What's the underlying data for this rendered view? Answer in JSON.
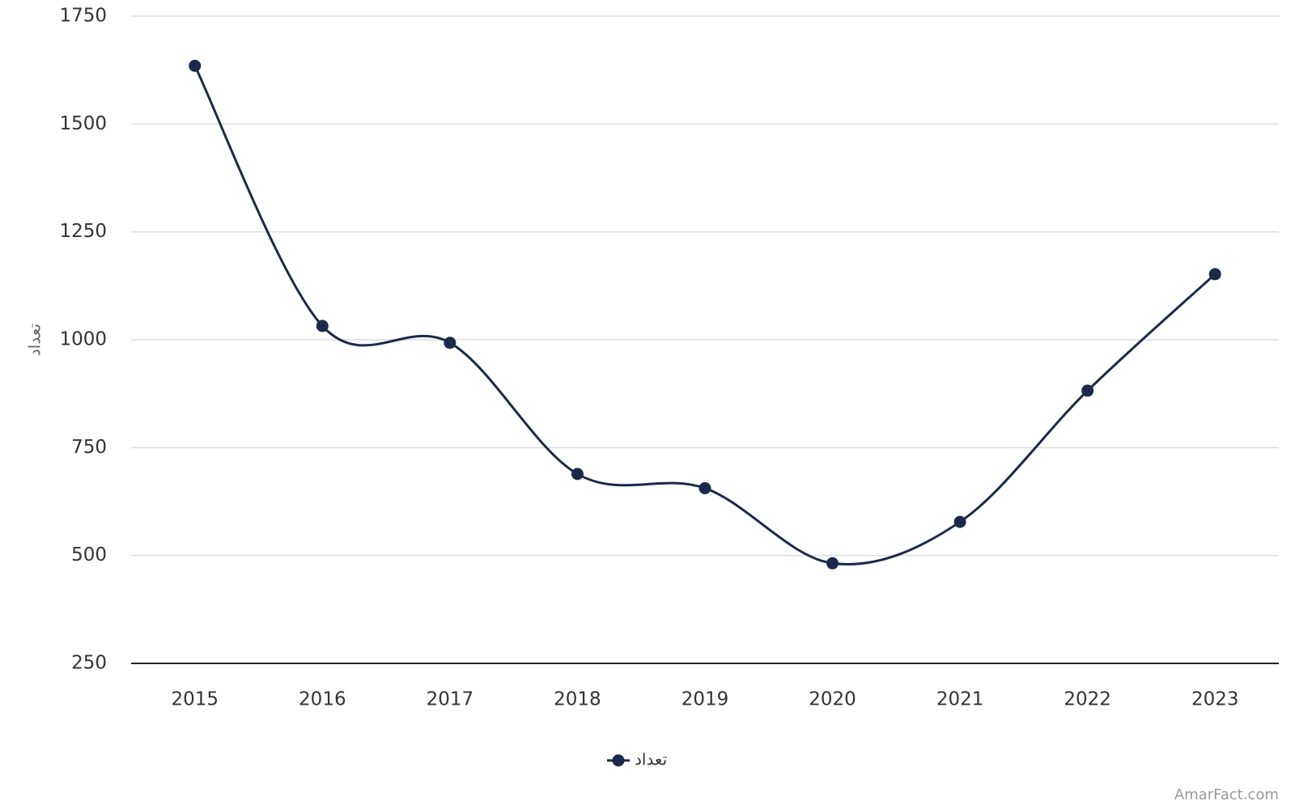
{
  "chart_data": {
    "type": "line",
    "y_label": "تعداد",
    "categories": [
      "2015",
      "2016",
      "2017",
      "2018",
      "2019",
      "2020",
      "2021",
      "2022",
      "2023"
    ],
    "series": [
      {
        "name": "تعداد",
        "color": "#1b2a4a",
        "values": [
          1635,
          1032,
          993,
          689,
          656,
          482,
          578,
          882,
          1152
        ]
      }
    ],
    "ylim": [
      250,
      1750
    ],
    "yticks": [
      250,
      500,
      750,
      1000,
      1250,
      1500,
      1750
    ],
    "grid": true,
    "smooth": true,
    "legend": "bottom",
    "watermark": "AmarFact.com"
  }
}
